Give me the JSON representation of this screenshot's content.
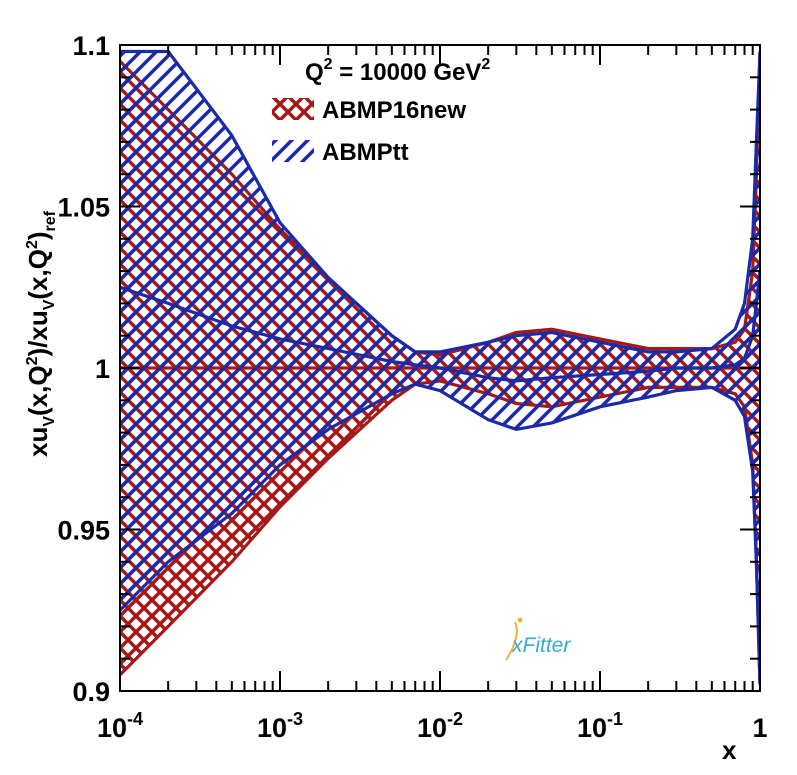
{
  "chart_data": {
    "type": "line",
    "title": "Q2 = 10000 GeV2",
    "title_parts": {
      "q": "Q",
      "q_exp": "2",
      "mid": " = 10000 GeV",
      "unit_exp": "2"
    },
    "xlabel": "x",
    "ylabel": "xuV(x,Q2)/xuV(x,Q2)ref",
    "ylabel_parts": [
      "xu",
      "V",
      "(x,Q",
      "2",
      ")/xu",
      "V",
      "(x,Q",
      "2",
      ")",
      "ref"
    ],
    "xscale": "log",
    "xlim": [
      0.0001,
      1
    ],
    "ylim": [
      0.9,
      1.1
    ],
    "x_ticks": [
      {
        "value": 0.0001,
        "base": "10",
        "exp": "-4"
      },
      {
        "value": 0.001,
        "base": "10",
        "exp": "-3"
      },
      {
        "value": 0.01,
        "base": "10",
        "exp": "-2"
      },
      {
        "value": 0.1,
        "base": "10",
        "exp": "-1"
      },
      {
        "value": 1,
        "base": "1",
        "exp": ""
      }
    ],
    "y_ticks": [
      {
        "value": 0.9,
        "label": "0.9"
      },
      {
        "value": 0.95,
        "label": "0.95"
      },
      {
        "value": 1.0,
        "label": "1"
      },
      {
        "value": 1.05,
        "label": "1.05"
      },
      {
        "value": 1.1,
        "label": "1.1"
      }
    ],
    "legend_position": "top-center",
    "x": [
      0.0001,
      0.0002,
      0.0005,
      0.001,
      0.002,
      0.005,
      0.007,
      0.01,
      0.02,
      0.03,
      0.05,
      0.1,
      0.2,
      0.3,
      0.5,
      0.7,
      0.8,
      0.9,
      0.95,
      1.0
    ],
    "series": [
      {
        "name": "ABMP16new",
        "color": "#a61919",
        "hatch": "cross",
        "central": [
          1.0,
          1.0,
          1.0,
          1.0,
          1.0,
          1.0,
          1.0,
          1.0,
          1.0,
          1.0,
          1.0,
          1.0,
          1.0,
          1.0,
          1.0,
          1.0,
          1.0,
          1.0,
          1.0,
          1.0
        ],
        "upper": [
          1.095,
          1.08,
          1.06,
          1.043,
          1.028,
          1.01,
          1.005,
          1.004,
          1.008,
          1.011,
          1.012,
          1.009,
          1.006,
          1.006,
          1.006,
          1.008,
          1.012,
          1.03,
          1.06,
          1.098
        ],
        "lower": [
          0.905,
          0.92,
          0.94,
          0.957,
          0.972,
          0.99,
          0.995,
          0.996,
          0.992,
          0.989,
          0.988,
          0.991,
          0.994,
          0.994,
          0.994,
          0.992,
          0.988,
          0.97,
          0.94,
          0.902
        ]
      },
      {
        "name": "ABMPtt",
        "color": "#1c2aa8",
        "hatch": "diagonal",
        "central": [
          1.025,
          1.02,
          1.013,
          1.009,
          1.006,
          1.002,
          1.001,
          1.0,
          0.997,
          0.996,
          0.997,
          0.998,
          0.999,
          1.0,
          1.0,
          1.001,
          1.003,
          1.01,
          1.02,
          1.03
        ],
        "upper": [
          1.098,
          1.098,
          1.072,
          1.045,
          1.028,
          1.01,
          1.005,
          1.005,
          1.008,
          1.01,
          1.011,
          1.008,
          1.005,
          1.005,
          1.006,
          1.012,
          1.02,
          1.04,
          1.07,
          1.098
        ],
        "lower": [
          0.925,
          0.94,
          0.955,
          0.97,
          0.981,
          0.992,
          0.995,
          0.993,
          0.984,
          0.981,
          0.983,
          0.988,
          0.991,
          0.993,
          0.994,
          0.99,
          0.985,
          0.968,
          0.94,
          0.902
        ]
      }
    ],
    "logo": {
      "text": "xFitter"
    }
  }
}
